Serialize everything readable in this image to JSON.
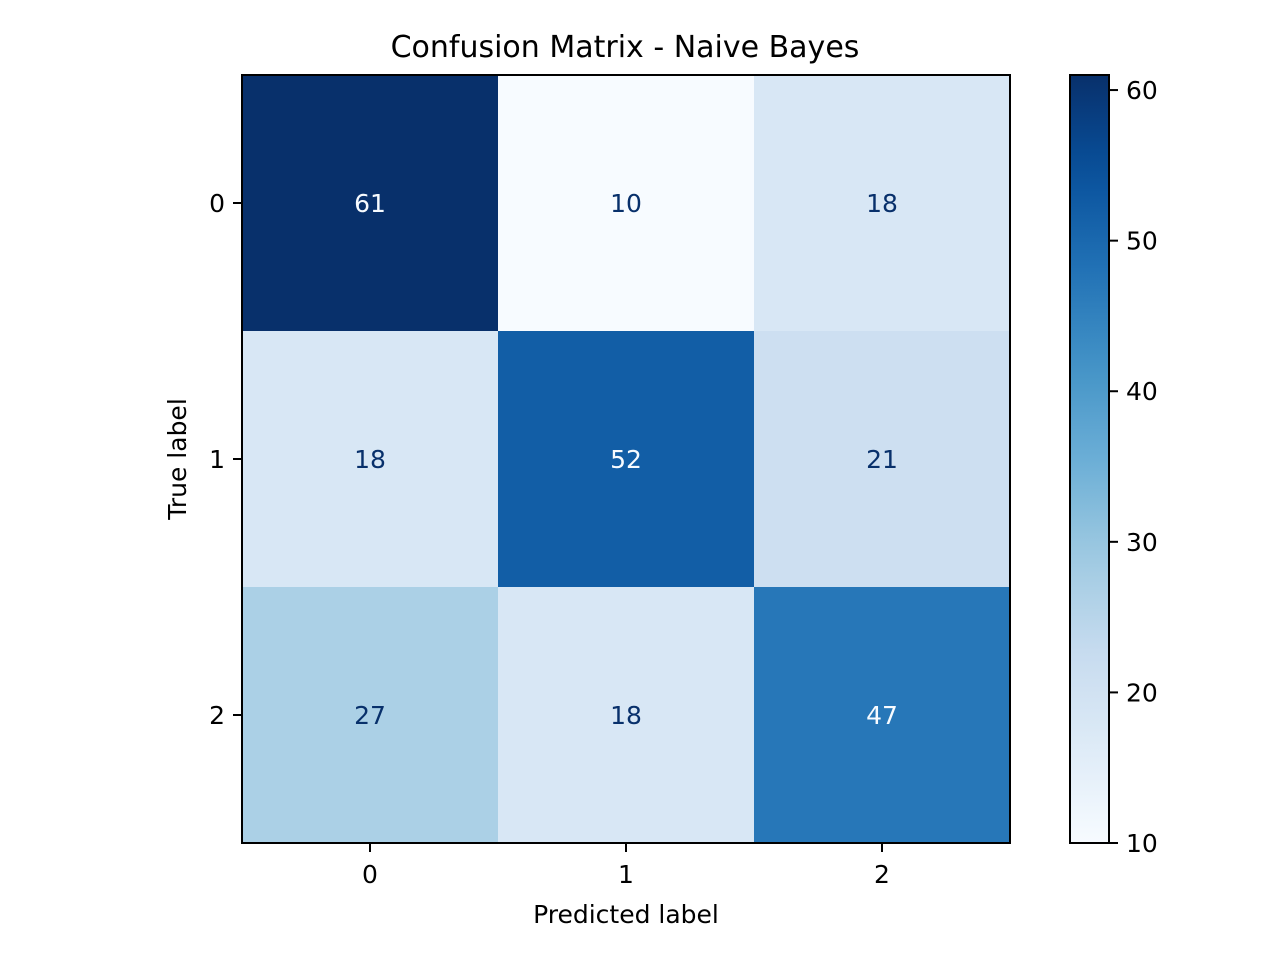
{
  "chart_data": {
    "type": "heatmap",
    "title": "Confusion Matrix - Naive Bayes",
    "xlabel": "Predicted label",
    "ylabel": "True label",
    "x_categories": [
      "0",
      "1",
      "2"
    ],
    "y_categories": [
      "0",
      "1",
      "2"
    ],
    "values": [
      [
        61,
        10,
        18
      ],
      [
        18,
        52,
        21
      ],
      [
        27,
        18,
        47
      ]
    ],
    "colormap": "Blues",
    "color_range": [
      10,
      61
    ],
    "colorbar_ticks": [
      10,
      20,
      30,
      40,
      50,
      60
    ],
    "colorbar_tick_labels": [
      "10",
      "20",
      "30",
      "40",
      "50",
      "60"
    ],
    "grid": false,
    "colors": {
      "low": "#f7fbff",
      "high": "#08306b",
      "dark_text": "#08306b",
      "light_text": "#f7fbff"
    }
  }
}
